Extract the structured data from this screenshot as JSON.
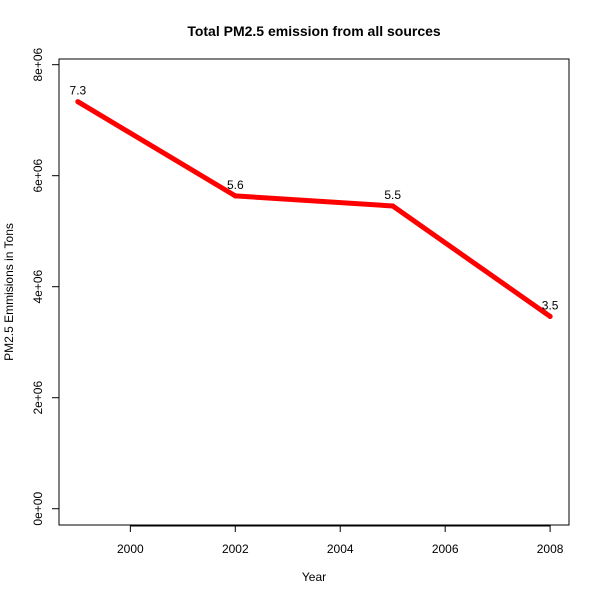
{
  "chart_data": {
    "type": "line",
    "title": "Total PM2.5 emission from all sources",
    "xlabel": "Year",
    "ylabel": "PM2.5 Emmisions in Tons",
    "x": [
      1999,
      2002,
      2005,
      2008
    ],
    "series": [
      {
        "values": [
          7332967,
          5635780,
          5454703,
          3464206
        ],
        "data_labels": [
          "7.3",
          "5.6",
          "5.5",
          "3.5"
        ],
        "color": "#ff0000"
      }
    ],
    "xlim": [
      1998.64,
      2008.36
    ],
    "ylim": [
      -293319,
      8102284
    ],
    "x_ticks": [
      2000,
      2002,
      2004,
      2006,
      2008
    ],
    "x_tick_labels": [
      "2000",
      "2002",
      "2004",
      "2006",
      "2008"
    ],
    "y_ticks": [
      0,
      2000000,
      4000000,
      6000000,
      8000000
    ],
    "y_tick_labels": [
      "0e+00",
      "2e+06",
      "4e+06",
      "6e+06",
      "8e+06"
    ],
    "grid": false,
    "legend": "none"
  }
}
